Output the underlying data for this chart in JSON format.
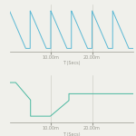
{
  "top_color": "#5ab8d4",
  "bottom_color": "#4ab8a0",
  "bg_color": "#f0f0eb",
  "grid_color": "#d0d0c8",
  "tick_color": "#999990",
  "xlabel": "T (Secs)",
  "x_tick_labels": [
    "10.00m",
    "20.00m"
  ],
  "x_tick_positions": [
    0.333,
    0.667
  ],
  "figsize": [
    1.5,
    1.5
  ],
  "dpi": 100,
  "n_teeth": 6,
  "tooth_duty": 0.78
}
